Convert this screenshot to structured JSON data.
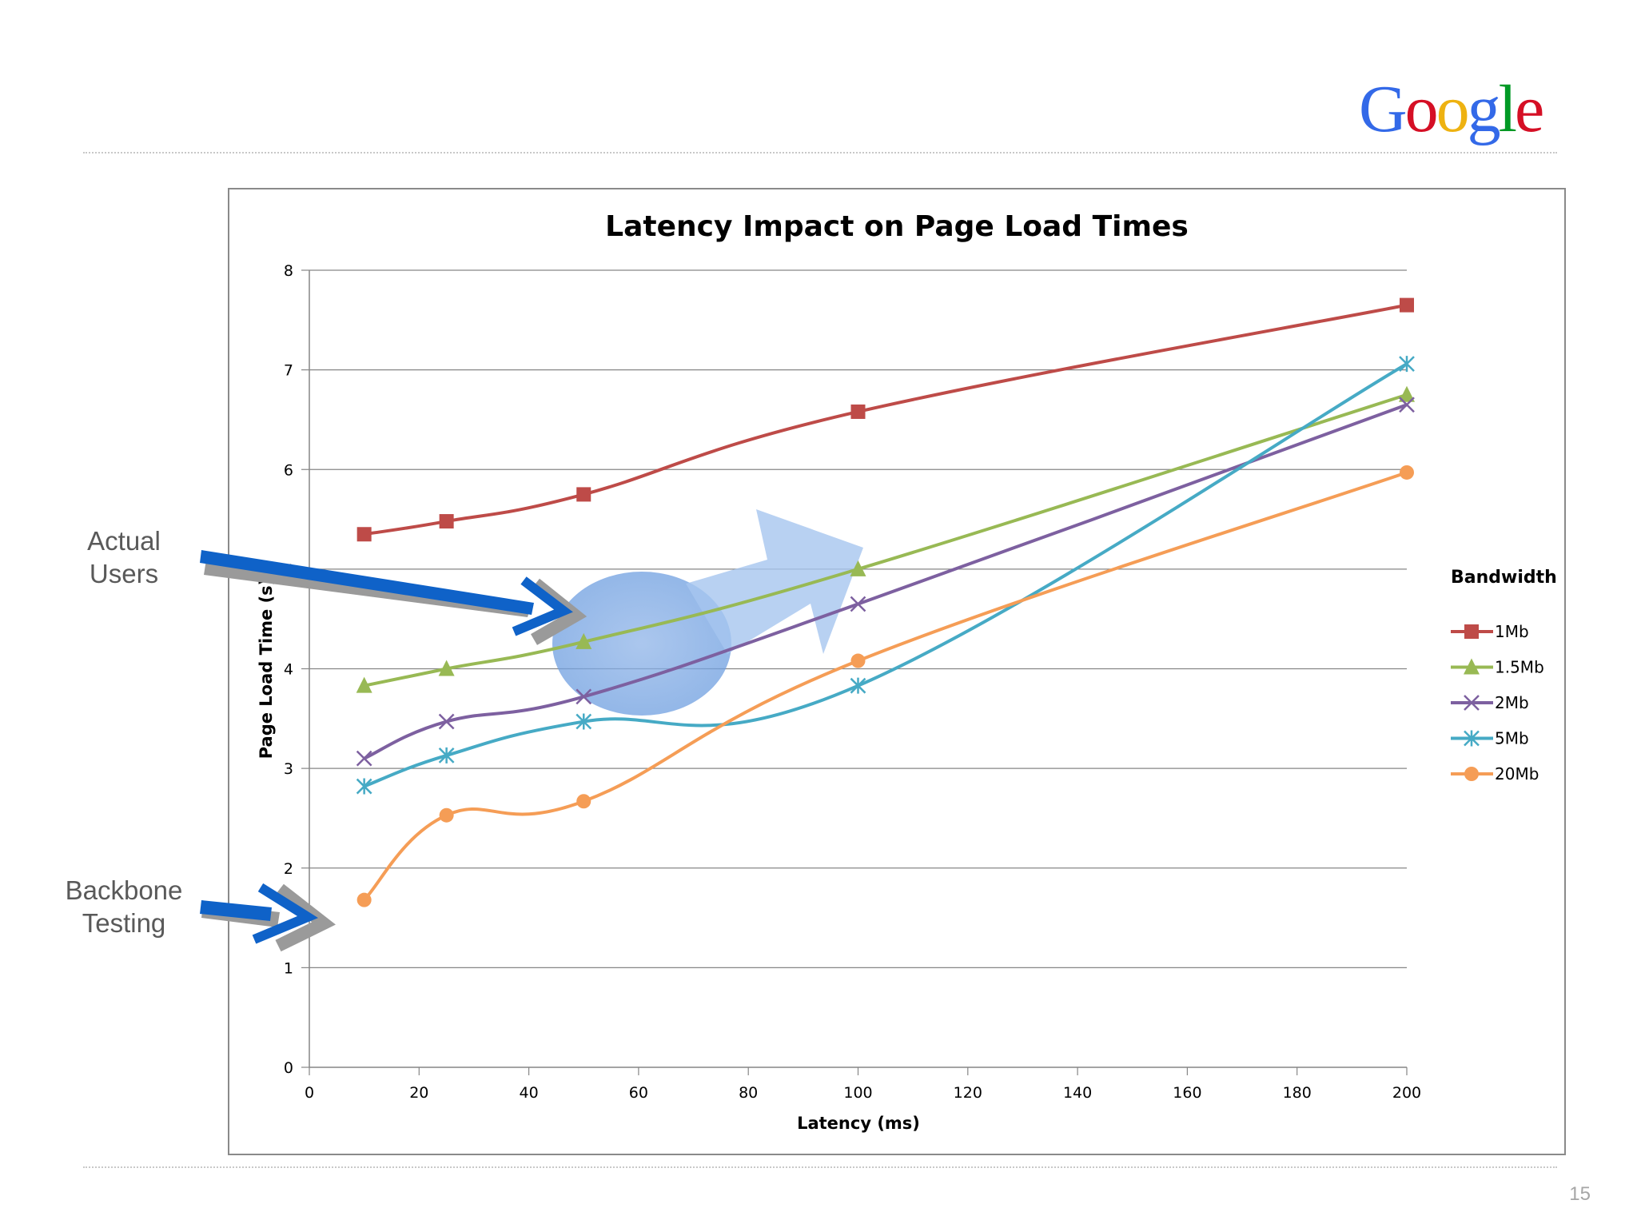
{
  "logo": {
    "text": "Google",
    "letters": [
      {
        "ch": "G",
        "color": "#3369E8"
      },
      {
        "ch": "o",
        "color": "#D50F25"
      },
      {
        "ch": "o",
        "color": "#EEB211"
      },
      {
        "ch": "g",
        "color": "#3369E8"
      },
      {
        "ch": "l",
        "color": "#009925"
      },
      {
        "ch": "e",
        "color": "#D50F25"
      }
    ]
  },
  "annotations": {
    "actual_users": [
      "Actual",
      "Users"
    ],
    "backbone_testing": [
      "Backbone",
      "Testing"
    ]
  },
  "page_number": "15",
  "chart_data": {
    "type": "line",
    "title": "Latency Impact on Page Load Times",
    "xlabel": "Latency (ms)",
    "ylabel": "Page Load Time (s)",
    "xlim": [
      0,
      200
    ],
    "ylim": [
      0,
      8
    ],
    "xticks": [
      0,
      20,
      40,
      60,
      80,
      100,
      120,
      140,
      160,
      180,
      200
    ],
    "yticks": [
      0,
      1,
      2,
      3,
      4,
      5,
      6,
      7,
      8
    ],
    "grid": "horizontal",
    "legend_title": "Bandwidth",
    "legend_position": "right",
    "x": [
      10,
      25,
      50,
      100,
      200
    ],
    "series": [
      {
        "name": "1Mb",
        "color": "#BE4B48",
        "marker": "square",
        "values": [
          5.35,
          5.48,
          5.75,
          6.58,
          7.65
        ]
      },
      {
        "name": "1.5Mb",
        "color": "#98B954",
        "marker": "triangle",
        "values": [
          3.83,
          4.0,
          4.27,
          5.0,
          6.75
        ]
      },
      {
        "name": "2Mb",
        "color": "#7D60A0",
        "marker": "x",
        "values": [
          3.1,
          3.47,
          3.72,
          4.65,
          6.65
        ]
      },
      {
        "name": "5Mb",
        "color": "#46AAC5",
        "marker": "star",
        "values": [
          2.82,
          3.13,
          3.47,
          3.83,
          7.06
        ]
      },
      {
        "name": "20Mb",
        "color": "#F59D56",
        "marker": "circle",
        "values": [
          1.68,
          2.53,
          2.67,
          4.08,
          5.97
        ]
      }
    ]
  }
}
